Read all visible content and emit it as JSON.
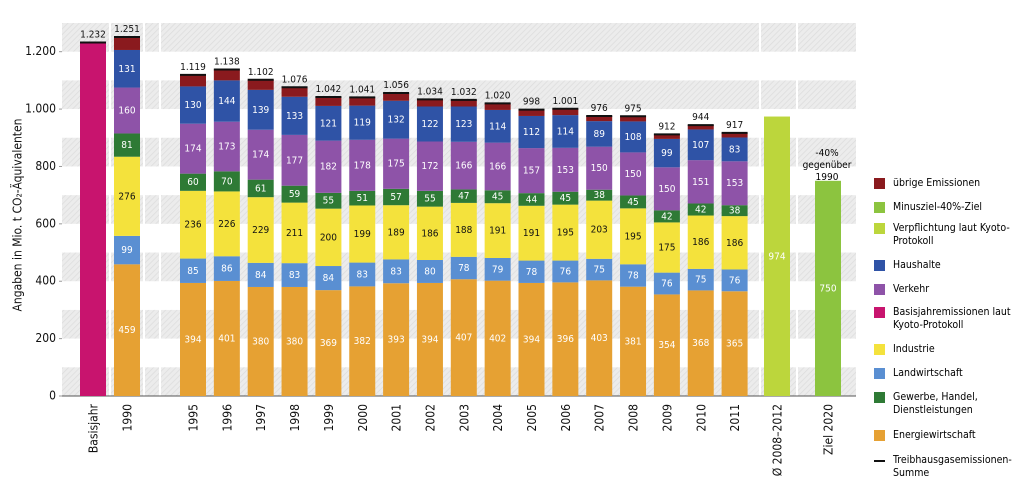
{
  "chart_data": {
    "type": "stacked-bar",
    "y_label": "Angaben in Mio. t CO₂-Äquivalenten",
    "categories": [
      "Basisjahr",
      "1990",
      "1995",
      "1996",
      "1997",
      "1998",
      "1999",
      "2000",
      "2001",
      "2002",
      "2003",
      "2004",
      "2005",
      "2006",
      "2007",
      "2008",
      "2009",
      "2010",
      "2011",
      "Ø 2008–2012",
      "Ziel 2020"
    ],
    "ylim": [
      0,
      1300
    ],
    "yticks": [
      0,
      {
        "value": 200,
        "label": "200"
      },
      {
        "value": 400,
        "label": "400"
      },
      {
        "value": 600,
        "label": "600"
      },
      {
        "value": 800,
        "label": "800"
      },
      {
        "value": 1000,
        "label": "1.000"
      },
      {
        "value": 1200,
        "label": "1.200"
      }
    ],
    "series": [
      {
        "name": "Energiewirtschaft",
        "color": "#e6a133",
        "values": [
          null,
          459,
          394,
          401,
          380,
          380,
          369,
          382,
          393,
          394,
          407,
          402,
          394,
          396,
          403,
          381,
          354,
          368,
          365,
          null,
          null
        ]
      },
      {
        "name": "Landwirtschaft",
        "color": "#5a8fd2",
        "values": [
          null,
          99,
          85,
          86,
          84,
          83,
          84,
          83,
          83,
          80,
          78,
          79,
          78,
          76,
          75,
          78,
          76,
          75,
          76,
          null,
          null
        ]
      },
      {
        "name": "Industrie",
        "color": "#f4e23c",
        "values": [
          null,
          276,
          236,
          226,
          229,
          211,
          200,
          199,
          189,
          186,
          188,
          191,
          191,
          195,
          203,
          195,
          175,
          186,
          186,
          null,
          null
        ]
      },
      {
        "name": "Gewerbe, Handel, Dienstleistungen",
        "color": "#2e7a35",
        "values": [
          null,
          81,
          60,
          70,
          61,
          59,
          55,
          51,
          57,
          55,
          47,
          45,
          44,
          45,
          38,
          45,
          42,
          42,
          38,
          null,
          null
        ]
      },
      {
        "name": "Verkehr",
        "color": "#8e53a8",
        "values": [
          null,
          160,
          174,
          173,
          174,
          177,
          182,
          178,
          175,
          172,
          166,
          166,
          157,
          153,
          150,
          150,
          150,
          151,
          153,
          null,
          null
        ]
      },
      {
        "name": "Haushalte",
        "color": "#2f53a6",
        "values": [
          null,
          131,
          130,
          144,
          139,
          133,
          121,
          119,
          132,
          122,
          123,
          114,
          112,
          114,
          89,
          108,
          99,
          107,
          83,
          null,
          null
        ]
      },
      {
        "name": "übrige Emissionen",
        "color": "#8a1a1e",
        "show_labels": false,
        "values": [
          null,
          45,
          40,
          38,
          35,
          33,
          31,
          29,
          27,
          25,
          23,
          23,
          22,
          22,
          18,
          18,
          16,
          15,
          16,
          null,
          null
        ]
      },
      {
        "name": "Basisjahremissionen laut Kyoto-Protokoll",
        "color": "#c8146e",
        "show_labels": false,
        "values": [
          1232,
          null,
          null,
          null,
          null,
          null,
          null,
          null,
          null,
          null,
          null,
          null,
          null,
          null,
          null,
          null,
          null,
          null,
          null,
          null,
          null
        ]
      },
      {
        "name": "Verpflichtung laut Kyoto-Protokoll",
        "color": "#bcd63c",
        "values": [
          null,
          null,
          null,
          null,
          null,
          null,
          null,
          null,
          null,
          null,
          null,
          null,
          null,
          null,
          null,
          null,
          null,
          null,
          null,
          974,
          null
        ]
      },
      {
        "name": "Minusziel-40%-Ziel",
        "color": "#8cc43f",
        "values": [
          null,
          null,
          null,
          null,
          null,
          null,
          null,
          null,
          null,
          null,
          null,
          null,
          null,
          null,
          null,
          null,
          null,
          null,
          null,
          null,
          750
        ]
      }
    ],
    "totals": {
      "name": "Treibhausgasemissionen-Summe",
      "color": "#111111",
      "values": [
        1232,
        1251,
        1119,
        1138,
        1102,
        1076,
        1042,
        1041,
        1056,
        1034,
        1032,
        1020,
        998,
        1001,
        976,
        975,
        912,
        944,
        917,
        null,
        null
      ],
      "value_labels": [
        "1.232",
        "1.251",
        "1.119",
        "1.138",
        "1.102",
        "1.076",
        "1.042",
        "1.041",
        "1.056",
        "1.034",
        "1.032",
        "1.020",
        "998",
        "1.001",
        "976",
        "975",
        "912",
        "944",
        "917",
        null,
        null
      ]
    },
    "annotation": "-40% gegenüber 1990"
  }
}
